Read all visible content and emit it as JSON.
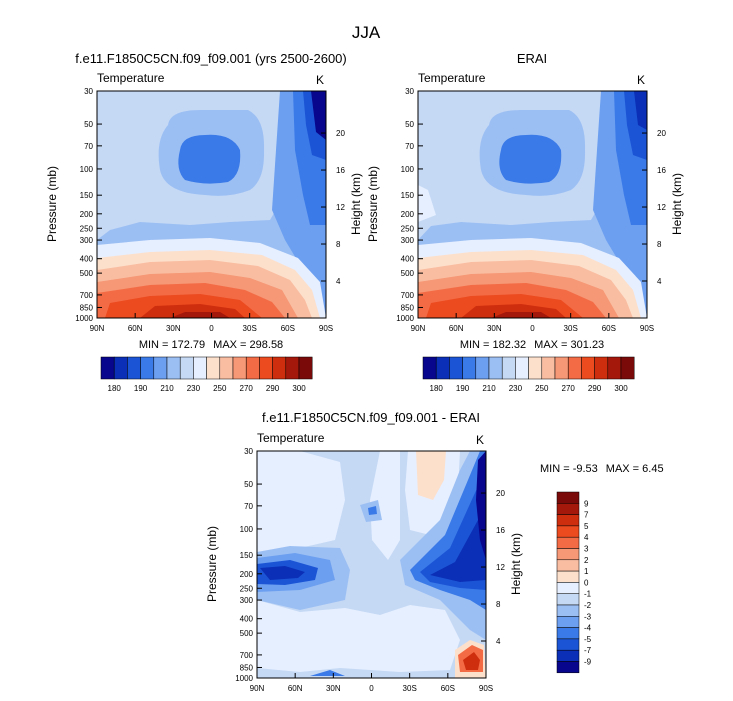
{
  "figure_title": "JJA",
  "chart_data": [
    {
      "type": "heatmap",
      "title": "f.e11.F1850C5CN.f09_f09.001 (yrs 2500-2600)",
      "left_label": "Temperature",
      "right_label": "K",
      "ylabel": "Pressure (mb)",
      "ylabel_right": "Height (km)",
      "pressure_ticks": [
        "30",
        "50",
        "70",
        "100",
        "150",
        "200",
        "250",
        "300",
        "400",
        "500",
        "700",
        "850",
        "1000"
      ],
      "height_ticks": [
        "20",
        "16",
        "12",
        "8",
        "4"
      ],
      "lat_ticks": [
        "90N",
        "60N",
        "30N",
        "0",
        "30S",
        "60S",
        "90S"
      ],
      "min_label": "MIN = 172.79",
      "max_label": "MAX = 298.58",
      "colorbar": {
        "orientation": "horizontal",
        "colors": [
          "#08068c",
          "#0b2fb6",
          "#1b55d6",
          "#3a7ae8",
          "#6c9ff0",
          "#9cbff3",
          "#c5d9f5",
          "#e6efff",
          "#fde0cc",
          "#f9bea2",
          "#f69775",
          "#f36b45",
          "#ec4a1f",
          "#cf2e0e",
          "#a4170b",
          "#7a0a0a"
        ],
        "labels": [
          "180",
          "190",
          "210",
          "230",
          "250",
          "270",
          "290",
          "300"
        ]
      }
    },
    {
      "type": "heatmap",
      "title": "ERAI",
      "left_label": "Temperature",
      "right_label": "K",
      "ylabel": "Pressure (mb)",
      "ylabel_right": "Height (km)",
      "pressure_ticks": [
        "30",
        "50",
        "70",
        "100",
        "150",
        "200",
        "250",
        "300",
        "400",
        "500",
        "700",
        "850",
        "1000"
      ],
      "height_ticks": [
        "20",
        "16",
        "12",
        "8",
        "4"
      ],
      "lat_ticks": [
        "90N",
        "60N",
        "30N",
        "0",
        "30S",
        "60S",
        "90S"
      ],
      "min_label": "MIN = 182.32",
      "max_label": "MAX = 301.23",
      "colorbar": {
        "orientation": "horizontal",
        "colors": [
          "#08068c",
          "#0b2fb6",
          "#1b55d6",
          "#3a7ae8",
          "#6c9ff0",
          "#9cbff3",
          "#c5d9f5",
          "#e6efff",
          "#fde0cc",
          "#f9bea2",
          "#f69775",
          "#f36b45",
          "#ec4a1f",
          "#cf2e0e",
          "#a4170b",
          "#7a0a0a"
        ],
        "labels": [
          "180",
          "190",
          "210",
          "230",
          "250",
          "270",
          "290",
          "300"
        ]
      }
    },
    {
      "type": "heatmap",
      "title": "f.e11.F1850C5CN.f09_f09.001 - ERAI",
      "left_label": "Temperature",
      "right_label": "K",
      "ylabel": "Pressure (mb)",
      "ylabel_right": "Height (km)",
      "pressure_ticks": [
        "30",
        "50",
        "70",
        "100",
        "150",
        "200",
        "250",
        "300",
        "400",
        "500",
        "700",
        "850",
        "1000"
      ],
      "height_ticks": [
        "20",
        "16",
        "12",
        "8",
        "4"
      ],
      "lat_ticks": [
        "90N",
        "60N",
        "30N",
        "0",
        "30S",
        "60S",
        "90S"
      ],
      "min_label": "MIN = -9.53",
      "max_label": "MAX =  6.45",
      "colorbar": {
        "orientation": "vertical",
        "colors": [
          "#7a0a0a",
          "#a4170b",
          "#cf2e0e",
          "#ec4a1f",
          "#f36b45",
          "#f69775",
          "#f9bea2",
          "#fde0cc",
          "#e6efff",
          "#c5d9f5",
          "#9cbff3",
          "#6c9ff0",
          "#3a7ae8",
          "#1b55d6",
          "#0b2fb6",
          "#08068c"
        ],
        "labels": [
          "9",
          "7",
          "5",
          "4",
          "3",
          "2",
          "1",
          "0",
          "-1",
          "-2",
          "-3",
          "-4",
          "-5",
          "-7",
          "-9"
        ]
      }
    }
  ]
}
